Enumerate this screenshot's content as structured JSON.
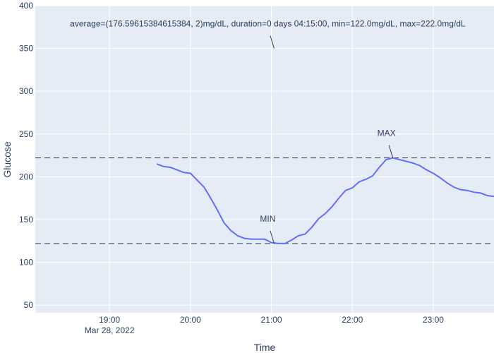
{
  "colors": {
    "plot_bg": "#e5ecf6",
    "grid": "#ffffff",
    "line": "#636efa",
    "refline": "#2a3f5f",
    "text": "#2a3f5f"
  },
  "chart_data": {
    "type": "line",
    "title": "",
    "xlabel": "Time",
    "ylabel": "Glucose",
    "x_axis": {
      "type": "time",
      "range": [
        "2022-03-28 18:05",
        "2022-03-28 23:45"
      ],
      "ticks": [
        {
          "t": "2022-03-28 19:00",
          "label": "19:00",
          "sublabel": "Mar 28, 2022"
        },
        {
          "t": "2022-03-28 20:00",
          "label": "20:00"
        },
        {
          "t": "2022-03-28 21:00",
          "label": "21:00"
        },
        {
          "t": "2022-03-28 22:00",
          "label": "22:00"
        },
        {
          "t": "2022-03-28 23:00",
          "label": "23:00"
        }
      ]
    },
    "y_axis": {
      "range": [
        41,
        400
      ],
      "ticks": [
        50,
        100,
        150,
        200,
        250,
        300,
        350,
        400
      ]
    },
    "grid": true,
    "series": [
      {
        "x": [
          "2022-03-28 19:35",
          "2022-03-28 19:40",
          "2022-03-28 19:45",
          "2022-03-28 19:50",
          "2022-03-28 19:55",
          "2022-03-28 20:00",
          "2022-03-28 20:05",
          "2022-03-28 20:10",
          "2022-03-28 20:15",
          "2022-03-28 20:20",
          "2022-03-28 20:25",
          "2022-03-28 20:30",
          "2022-03-28 20:35",
          "2022-03-28 20:40",
          "2022-03-28 20:45",
          "2022-03-28 20:50",
          "2022-03-28 20:55",
          "2022-03-28 21:00",
          "2022-03-28 21:05",
          "2022-03-28 21:10",
          "2022-03-28 21:15",
          "2022-03-28 21:20",
          "2022-03-28 21:25",
          "2022-03-28 21:30",
          "2022-03-28 21:35",
          "2022-03-28 21:40",
          "2022-03-28 21:45",
          "2022-03-28 21:50",
          "2022-03-28 21:55",
          "2022-03-28 22:00",
          "2022-03-28 22:05",
          "2022-03-28 22:10",
          "2022-03-28 22:15",
          "2022-03-28 22:20",
          "2022-03-28 22:25",
          "2022-03-28 22:30",
          "2022-03-28 22:35",
          "2022-03-28 22:40",
          "2022-03-28 22:45",
          "2022-03-28 22:50",
          "2022-03-28 22:55",
          "2022-03-28 23:00",
          "2022-03-28 23:05",
          "2022-03-28 23:10",
          "2022-03-28 23:15",
          "2022-03-28 23:20",
          "2022-03-28 23:25",
          "2022-03-28 23:30",
          "2022-03-28 23:35",
          "2022-03-28 23:40",
          "2022-03-28 23:45"
        ],
        "y": [
          215,
          212,
          211,
          208,
          205,
          204,
          196,
          188,
          175,
          161,
          146,
          137,
          131,
          128,
          127,
          127,
          127,
          123,
          122,
          122,
          126,
          131,
          133,
          141,
          151,
          157,
          165,
          175,
          184,
          187,
          194,
          197,
          201,
          211,
          220,
          222,
          220,
          218,
          216,
          213,
          208,
          204,
          199,
          193,
          188,
          185,
          184,
          182,
          181,
          178,
          177
        ]
      }
    ],
    "reference_lines": [
      {
        "y": 222,
        "style": "dash"
      },
      {
        "y": 122,
        "style": "dash"
      }
    ],
    "annotations": [
      {
        "text": "average=(176.59615384615384, 2)mg/dL, duration=0 days 04:15:00, min=122.0mg/dL, max=222.0mg/dL",
        "x": "2022-03-28 21:02",
        "y": 350
      },
      {
        "text": "MAX",
        "x": "2022-03-28 22:30",
        "y": 222
      },
      {
        "text": "MIN",
        "x": "2022-03-28 21:02",
        "y": 122
      }
    ]
  }
}
